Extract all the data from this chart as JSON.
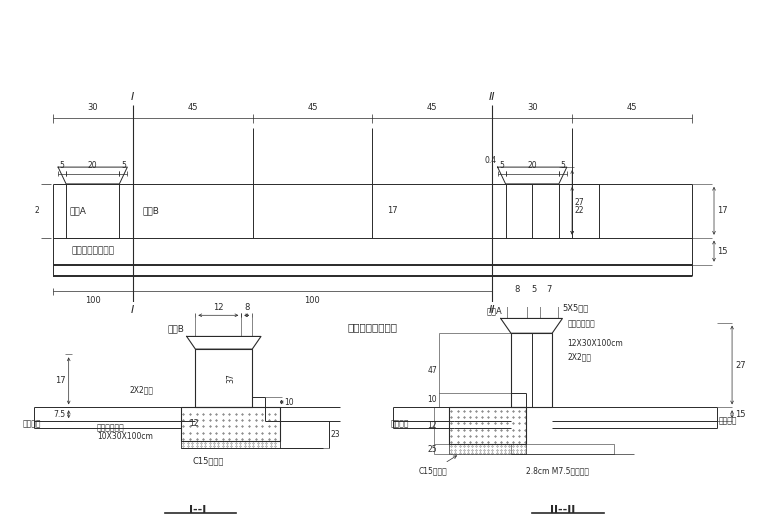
{
  "bg": "#ffffff",
  "lc": "#2a2a2a",
  "top": {
    "title": "中央分隔带立面图",
    "spans": [
      30,
      45,
      45,
      45,
      30,
      45
    ],
    "label_A": "盖板A",
    "label_B": "盖板B",
    "label_base": "支撑基础构造形式",
    "dim_17": "17",
    "dim_15": "15",
    "dim_22": "22",
    "dim_27": "27",
    "dim_100": "100",
    "dim_04": "0.4",
    "sub5": "5",
    "sub20": "20"
  },
  "sec1": {
    "title": "I--I",
    "label_cover": "盖板B",
    "label_2x2": "2X2孔洞",
    "label_rubber": "弹性嵌缝材料",
    "label_rubber2": "10X30X100cm",
    "label_c15": "C15砍垫层",
    "label_road": "路缘石基",
    "d12": "12",
    "d8": "8",
    "d17": "17",
    "d75": "7.5",
    "d10": "10",
    "d37": "37",
    "d12b": "12",
    "d23": "23"
  },
  "sec2": {
    "title": "II--II",
    "label_coverA": "盖板A",
    "label_5x5": "5X5倒角",
    "label_rubber": "弹性嵌缝材料",
    "label_rubber2": "12X30X100cm",
    "label_2x2": "2X2孔洞",
    "label_c15": "C15砍垫层",
    "label_mortar": "2.8cm M7.5水泥沙浆",
    "label_road_l": "路缘石基",
    "label_road_r": "路缘石基",
    "d8": "8",
    "d5": "5",
    "d7": "7",
    "d27": "27",
    "d15": "15",
    "d10": "10",
    "d47": "47",
    "d12": "12",
    "d25": "25"
  }
}
